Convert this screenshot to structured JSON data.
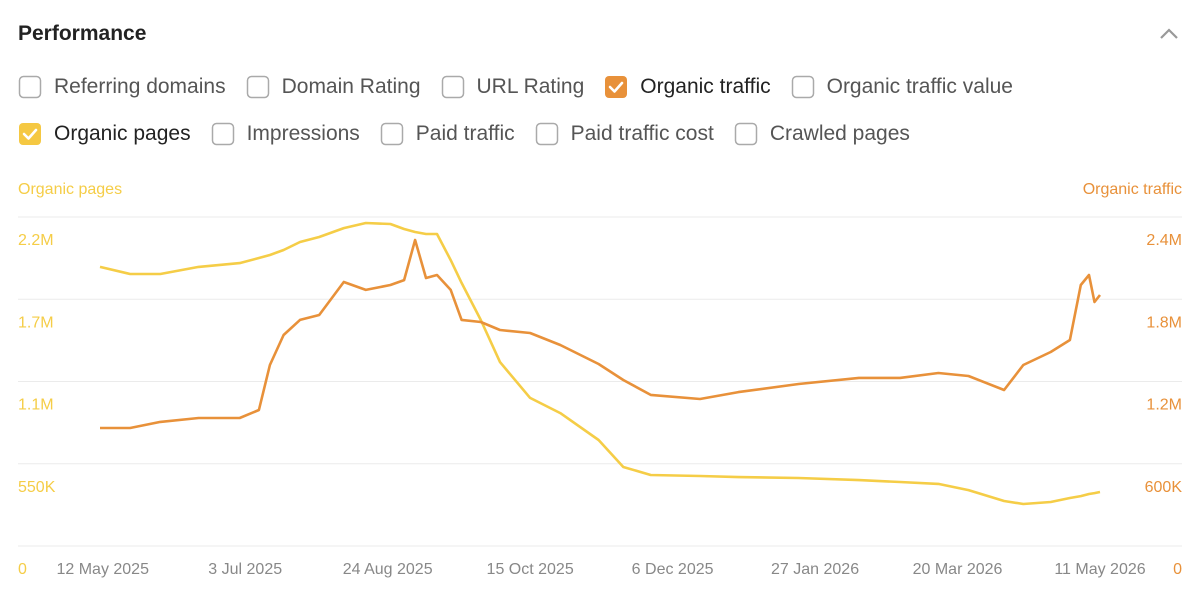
{
  "header": {
    "title": "Performance"
  },
  "checkboxes": [
    {
      "label": "Referring domains",
      "checked": false
    },
    {
      "label": "Domain Rating",
      "checked": false
    },
    {
      "label": "URL Rating",
      "checked": false
    },
    {
      "label": "Organic traffic",
      "checked": true,
      "color": "#e8913a"
    },
    {
      "label": "Organic traffic value",
      "checked": false
    },
    {
      "label": "Organic pages",
      "checked": true,
      "color": "#f5c842"
    },
    {
      "label": "Impressions",
      "checked": false
    },
    {
      "label": "Paid traffic",
      "checked": false
    },
    {
      "label": "Paid traffic cost",
      "checked": false
    },
    {
      "label": "Crawled pages",
      "checked": false
    }
  ],
  "chart_data": {
    "type": "line",
    "x": [
      "2025-05-11",
      "2025-05-22",
      "2025-06-02",
      "2025-06-16",
      "2025-07-01",
      "2025-07-08",
      "2025-07-12",
      "2025-07-17",
      "2025-07-23",
      "2025-07-30",
      "2025-08-08",
      "2025-08-16",
      "2025-08-25",
      "2025-08-30",
      "2025-09-03",
      "2025-09-07",
      "2025-09-11",
      "2025-09-16",
      "2025-09-20",
      "2025-09-27",
      "2025-10-04",
      "2025-10-15",
      "2025-10-26",
      "2025-11-09",
      "2025-11-18",
      "2025-11-28",
      "2025-12-16",
      "2025-12-30",
      "2026-01-21",
      "2026-02-12",
      "2026-02-27",
      "2026-03-13",
      "2026-03-24",
      "2026-04-06",
      "2026-04-13",
      "2026-04-23",
      "2026-04-30",
      "2026-05-04",
      "2026-05-07",
      "2026-05-09",
      "2026-05-11"
    ],
    "xlim": [
      "2025-05-11",
      "2026-05-11"
    ],
    "xticks": [
      {
        "value": "2025-05-12",
        "label": "12 May 2025"
      },
      {
        "value": "2025-07-03",
        "label": "3 Jul 2025"
      },
      {
        "value": "2025-08-24",
        "label": "24 Aug 2025"
      },
      {
        "value": "2025-10-15",
        "label": "15 Oct 2025"
      },
      {
        "value": "2025-12-06",
        "label": "6 Dec 2025"
      },
      {
        "value": "2026-01-27",
        "label": "27 Jan 2026"
      },
      {
        "value": "2026-03-20",
        "label": "20 Mar 2026"
      },
      {
        "value": "2026-05-11",
        "label": "11 May 2026"
      }
    ],
    "ylim": [
      0,
      2200000
    ],
    "yticks": [
      0,
      {
        "value": 550000,
        "label": "550K"
      },
      {
        "value": 1100000,
        "label": "1.1M"
      },
      {
        "value": 1650000,
        "label": "1.7M"
      },
      {
        "value": 2200000,
        "label": "2.2M"
      }
    ],
    "y2lim": [
      0,
      2400000
    ],
    "y2ticks": [
      0,
      {
        "value": 600000,
        "label": "600K"
      },
      {
        "value": 1200000,
        "label": "1.2M"
      },
      {
        "value": 1800000,
        "label": "1.8M"
      },
      {
        "value": 2400000,
        "label": "2.4M"
      }
    ],
    "grid": true,
    "series": [
      {
        "name": "Organic pages",
        "color": "#f5cd47",
        "values": [
          1866000,
          1819000,
          1819000,
          1866000,
          1892000,
          1926000,
          1946000,
          1979000,
          2033000,
          2066000,
          2126000,
          2160000,
          2153000,
          2120000,
          2100000,
          2086000,
          2086000,
          1912000,
          1759000,
          1511000,
          1230000,
          990000,
          889000,
          709000,
          528000,
          475000,
          468000,
          461000,
          455000,
          441000,
          428000,
          415000,
          374000,
          301000,
          281000,
          294000,
          321000,
          334000,
          348000,
          354000,
          361000
        ]
      },
      {
        "name": "Organic traffic",
        "color": "#e8913a",
        "axis": "y2",
        "values": [
          861000,
          861000,
          905000,
          934000,
          934000,
          992000,
          1320000,
          1539000,
          1649000,
          1685000,
          1926000,
          1868000,
          1904000,
          1940000,
          2232000,
          1955000,
          1977000,
          1868000,
          1649000,
          1634000,
          1576000,
          1554000,
          1466000,
          1328000,
          1211000,
          1102000,
          1072000,
          1123000,
          1182000,
          1226000,
          1226000,
          1262000,
          1240000,
          1138000,
          1320000,
          1415000,
          1503000,
          1904000,
          1977000,
          1780000,
          1831000
        ]
      }
    ]
  }
}
